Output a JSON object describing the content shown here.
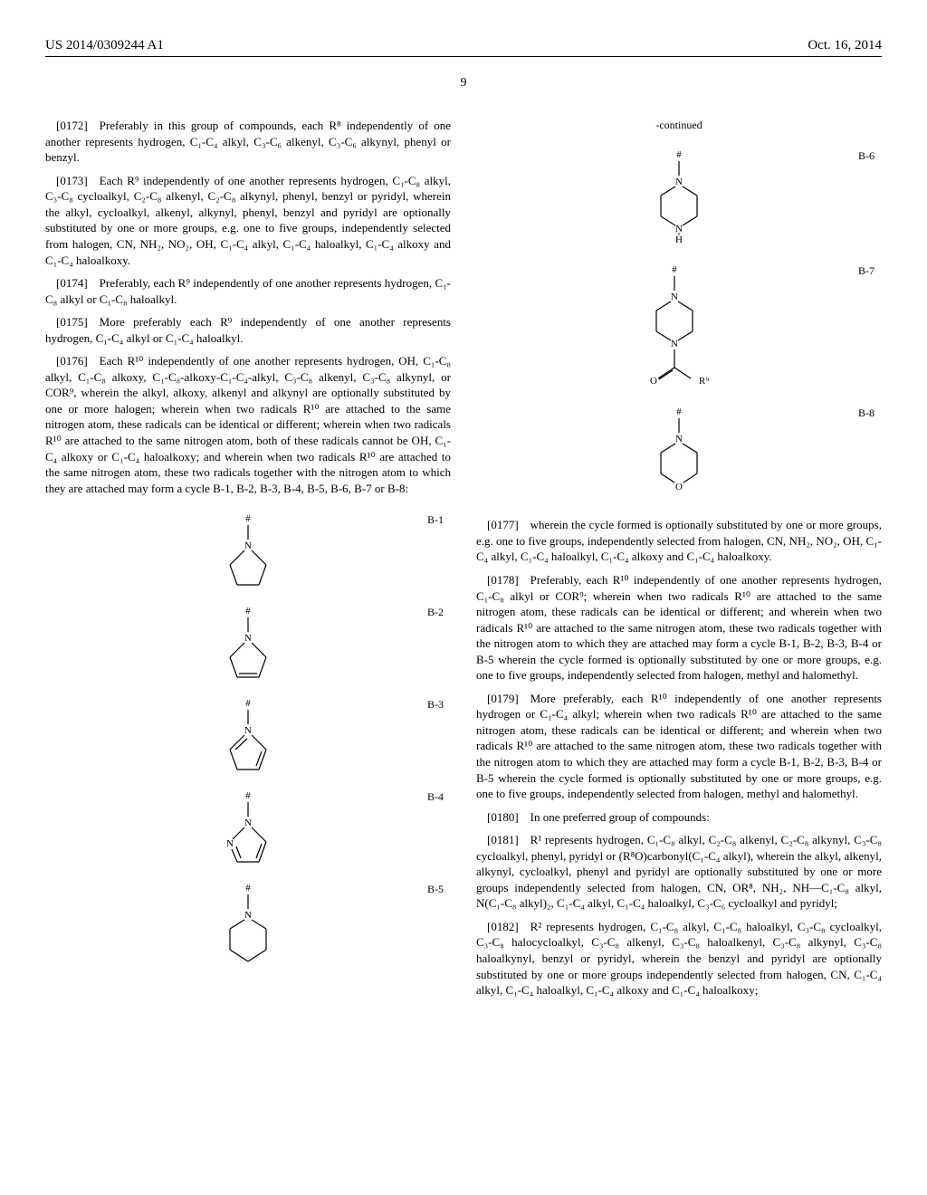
{
  "header": {
    "left": "US 2014/0309244 A1",
    "right": "Oct. 16, 2014"
  },
  "page_number": "9",
  "left_col": {
    "p0172": "[0172] Preferably in this group of compounds, each R⁸ independently of one another represents hydrogen, C₁-C₄ alkyl, C₃-C₆ alkenyl, C₃-C₆ alkynyl, phenyl or benzyl.",
    "p0173": "[0173] Each R⁹ independently of one another represents hydrogen, C₁-C₈ alkyl, C₃-C₈ cycloalkyl, C₂-C₈ alkenyl, C₂-C₈ alkynyl, phenyl, benzyl or pyridyl, wherein the alkyl, cycloalkyl, alkenyl, alkynyl, phenyl, benzyl and pyridyl are optionally substituted by one or more groups, e.g. one to five groups, independently selected from halogen, CN, NH₂, NO₂, OH, C₁-C₄ alkyl, C₁-C₄ haloalkyl, C₁-C₄ alkoxy and C₁-C₄ haloalkoxy.",
    "p0174": "[0174] Preferably, each R⁹ independently of one another represents hydrogen, C₁-C₈ alkyl or C₁-C₈ haloalkyl.",
    "p0175": "[0175] More preferably each R⁹ independently of one another represents hydrogen, C₁-C₄ alkyl or C₁-C₄ haloalkyl.",
    "p0176": "[0176] Each R¹⁰ independently of one another represents hydrogen, OH, C₁-C₈ alkyl, C₁-C₈ alkoxy, C₁-C₈-alkoxy-C₁-C₄-alkyl, C₃-C₈ alkenyl, C₃-C₈ alkynyl, or COR⁹, wherein the alkyl, alkoxy, alkenyl and alkynyl are optionally substituted by one or more halogen; wherein when two radicals R¹⁰ are attached to the same nitrogen atom, these radicals can be identical or different; wherein when two radicals R¹⁰ are attached to the same nitrogen atom, both of these radicals cannot be OH, C₁-C₄ alkoxy or C₁-C₄ haloalkoxy; and wherein when two radicals R¹⁰ are attached to the same nitrogen atom, these two radicals together with the nitrogen atom to which they are attached may form a cycle B-1, B-2, B-3, B-4, B-5, B-6, B-7 or B-8:",
    "labels": {
      "b1": "B-1",
      "b2": "B-2",
      "b3": "B-3",
      "b4": "B-4",
      "b5": "B-5"
    }
  },
  "right_col": {
    "continued": "-continued",
    "labels": {
      "b6": "B-6",
      "b7": "B-7",
      "b8": "B-8"
    },
    "p0177": "[0177] wherein the cycle formed is optionally substituted by one or more groups, e.g. one to five groups, independently selected from halogen, CN, NH₂, NO₂, OH, C₁-C₄ alkyl, C₁-C₄ haloalkyl, C₁-C₄ alkoxy and C₁-C₄ haloalkoxy.",
    "p0178": "[0178] Preferably, each R¹⁰ independently of one another represents hydrogen, C₁-C₈ alkyl or COR⁹; wherein when two radicals R¹⁰ are attached to the same nitrogen atom, these radicals can be identical or different; and wherein when two radicals R¹⁰ are attached to the same nitrogen atom, these two radicals together with the nitrogen atom to which they are attached may form a cycle B-1, B-2, B-3, B-4 or B-5 wherein the cycle formed is optionally substituted by one or more groups, e.g. one to five groups, independently selected from halogen, methyl and halomethyl.",
    "p0179": "[0179] More preferably, each R¹⁰ independently of one another represents hydrogen or C₁-C₄ alkyl; wherein when two radicals R¹⁰ are attached to the same nitrogen atom, these radicals can be identical or different; and wherein when two radicals R¹⁰ are attached to the same nitrogen atom, these two radicals together with the nitrogen atom to which they are attached may form a cycle B-1, B-2, B-3, B-4 or B-5 wherein the cycle formed is optionally substituted by one or more groups, e.g. one to five groups, independently selected from halogen, methyl and halomethyl.",
    "p0180": "[0180] In one preferred group of compounds:",
    "p0181": "[0181] R¹ represents hydrogen, C₁-C₈ alkyl, C₂-C₈ alkenyl, C₂-C₈ alkynyl, C₃-C₈ cycloalkyl, phenyl, pyridyl or (R⁸O)carbonyl(C₁-C₄ alkyl), wherein the alkyl, alkenyl, alkynyl, cycloalkyl, phenyl and pyridyl are optionally substituted by one or more groups independently selected from halogen, CN, OR⁸, NH₂, NH—C₁-C₈ alkyl, N(C₁-C₈ alkyl)₂, C₁-C₄ alkyl, C₁-C₄ haloalkyl, C₃-C₆ cycloalkyl and pyridyl;",
    "p0182": "[0182] R² represents hydrogen, C₁-C₈ alkyl, C₁-C₈ haloalkyl, C₃-C₈ cycloalkyl, C₃-C₈ halocycloalkyl, C₃-C₈ alkenyl, C₃-C₈ haloalkenyl, C₃-C₈ alkynyl, C₃-C₈ haloalkynyl, benzyl or pyridyl, wherein the benzyl and pyridyl are optionally substituted by one or more groups independently selected from halogen, CN, C₁-C₄ alkyl, C₁-C₄ haloalkyl, C₁-C₄ alkoxy and C₁-C₄ haloalkoxy;"
  },
  "chem_style": {
    "stroke": "#000000",
    "stroke_width": 1.2,
    "font_family": "Times New Roman",
    "label_fontsize": 11,
    "hash_fontsize": 11
  }
}
